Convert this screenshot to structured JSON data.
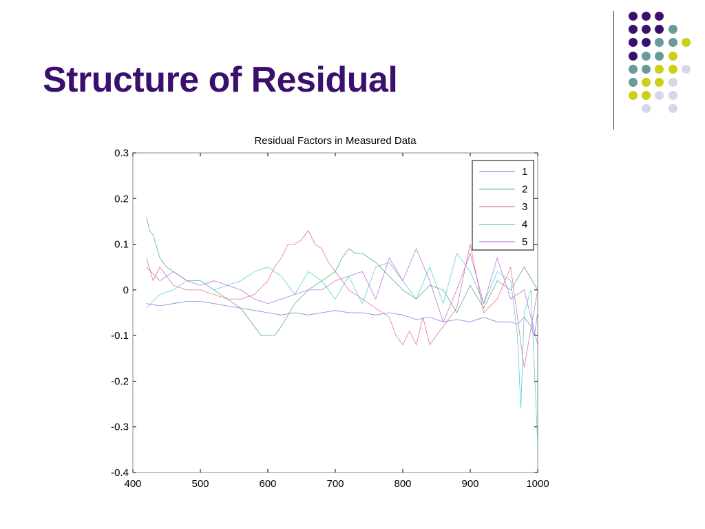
{
  "slide": {
    "title": "Structure of Residual"
  },
  "decoration": {
    "icon": "dot-grid-icon",
    "colors": {
      "purple": "#3b0f6e",
      "teal": "#6b9a9a",
      "yellow": "#cdcd1a",
      "lavender": "#d6d6ea"
    },
    "grid": [
      [
        "purple",
        "purple",
        "purple",
        null,
        null
      ],
      [
        "purple",
        "purple",
        "purple",
        "teal",
        null
      ],
      [
        "purple",
        "purple",
        "teal",
        "teal",
        "yellow"
      ],
      [
        "purple",
        "teal",
        "teal",
        "yellow",
        null
      ],
      [
        "teal",
        "teal",
        "yellow",
        "yellow",
        "lavender"
      ],
      [
        "teal",
        "yellow",
        "yellow",
        "lavender",
        null
      ],
      [
        "yellow",
        "yellow",
        "lavender",
        "lavender",
        null
      ],
      [
        null,
        "lavender",
        null,
        "lavender",
        null
      ]
    ]
  },
  "chart_data": {
    "type": "line",
    "title": "Residual Factors in Measured Data",
    "xlabel": "",
    "ylabel": "",
    "xlim": [
      400,
      1000
    ],
    "ylim": [
      -0.4,
      0.3
    ],
    "xticks": [
      400,
      500,
      600,
      700,
      800,
      900,
      1000
    ],
    "yticks": [
      0.3,
      0.2,
      0.1,
      0,
      -0.1,
      -0.2,
      -0.3,
      -0.4
    ],
    "xtick_labels": [
      "400",
      "500",
      "600",
      "700",
      "800",
      "900",
      "1000"
    ],
    "ytick_labels": [
      "0.3",
      "0.2",
      "0.1",
      "0",
      "-0.1",
      "-0.2",
      "-0.3",
      "-0.4"
    ],
    "grid": false,
    "legend_position": "top-right",
    "series": [
      {
        "name": "1",
        "color": "#6f6fe0",
        "x": [
          420,
          440,
          460,
          480,
          500,
          520,
          540,
          560,
          580,
          600,
          620,
          640,
          660,
          680,
          700,
          720,
          740,
          760,
          780,
          800,
          820,
          840,
          860,
          880,
          900,
          920,
          940,
          960,
          970,
          980,
          990,
          995,
          1000
        ],
        "values": [
          -0.03,
          -0.035,
          -0.03,
          -0.025,
          -0.025,
          -0.03,
          -0.035,
          -0.04,
          -0.045,
          -0.05,
          -0.055,
          -0.05,
          -0.055,
          -0.05,
          -0.045,
          -0.05,
          -0.05,
          -0.055,
          -0.05,
          -0.055,
          -0.065,
          -0.06,
          -0.07,
          -0.065,
          -0.07,
          -0.06,
          -0.07,
          -0.07,
          -0.075,
          -0.06,
          -0.08,
          -0.1,
          -0.05
        ]
      },
      {
        "name": "2",
        "color": "#3ca05a",
        "x": [
          420,
          425,
          430,
          440,
          450,
          460,
          480,
          500,
          520,
          540,
          560,
          580,
          590,
          600,
          610,
          620,
          640,
          660,
          680,
          700,
          710,
          720,
          730,
          740,
          760,
          780,
          800,
          820,
          840,
          860,
          880,
          900,
          920,
          940,
          960,
          980,
          1000
        ],
        "values": [
          0.16,
          0.13,
          0.12,
          0.07,
          0.05,
          0.04,
          0.02,
          0.02,
          0.0,
          -0.02,
          -0.04,
          -0.08,
          -0.1,
          -0.1,
          -0.1,
          -0.08,
          -0.03,
          0.0,
          0.02,
          0.04,
          0.07,
          0.09,
          0.08,
          0.08,
          0.06,
          0.03,
          0.0,
          -0.02,
          0.01,
          0.0,
          -0.05,
          0.01,
          -0.04,
          0.02,
          0.0,
          0.05,
          0.0
        ]
      },
      {
        "name": "3",
        "color": "#e05a8a",
        "x": [
          420,
          430,
          440,
          460,
          480,
          500,
          520,
          540,
          560,
          580,
          600,
          610,
          620,
          630,
          640,
          650,
          660,
          670,
          680,
          690,
          700,
          720,
          740,
          760,
          780,
          790,
          800,
          810,
          820,
          830,
          840,
          860,
          880,
          900,
          920,
          940,
          960,
          980,
          1000
        ],
        "values": [
          0.07,
          0.02,
          0.05,
          0.01,
          0.0,
          0.0,
          -0.01,
          -0.02,
          -0.02,
          -0.01,
          0.02,
          0.05,
          0.07,
          0.1,
          0.1,
          0.11,
          0.13,
          0.1,
          0.09,
          0.06,
          0.04,
          0.0,
          -0.02,
          -0.04,
          -0.06,
          -0.1,
          -0.12,
          -0.09,
          -0.12,
          -0.06,
          -0.12,
          -0.08,
          -0.04,
          0.1,
          -0.05,
          -0.02,
          0.05,
          -0.17,
          0.0
        ]
      },
      {
        "name": "4",
        "color": "#3cc8c8",
        "x": [
          420,
          440,
          460,
          480,
          500,
          520,
          540,
          560,
          580,
          600,
          620,
          640,
          660,
          680,
          700,
          720,
          740,
          760,
          780,
          800,
          820,
          840,
          860,
          880,
          900,
          920,
          940,
          960,
          970,
          975,
          980,
          990,
          1000
        ],
        "values": [
          -0.04,
          -0.01,
          0.0,
          0.02,
          0.02,
          0.0,
          0.01,
          0.02,
          0.04,
          0.05,
          0.03,
          -0.01,
          0.04,
          0.02,
          -0.02,
          0.03,
          -0.03,
          0.05,
          0.06,
          0.02,
          -0.02,
          0.05,
          -0.03,
          0.08,
          0.04,
          -0.03,
          0.04,
          0.02,
          -0.1,
          -0.26,
          -0.05,
          0.0,
          -0.34
        ]
      },
      {
        "name": "5",
        "color": "#b45ae0",
        "x": [
          420,
          440,
          460,
          480,
          500,
          520,
          540,
          560,
          580,
          600,
          620,
          640,
          660,
          680,
          700,
          720,
          740,
          760,
          780,
          800,
          820,
          840,
          860,
          880,
          900,
          920,
          940,
          960,
          980,
          1000
        ],
        "values": [
          0.05,
          0.02,
          0.04,
          0.02,
          0.01,
          0.02,
          0.01,
          0.0,
          -0.02,
          -0.03,
          -0.02,
          -0.01,
          0.0,
          0.0,
          0.02,
          0.03,
          0.04,
          -0.02,
          0.07,
          0.02,
          0.09,
          0.02,
          -0.07,
          0.0,
          0.08,
          -0.03,
          0.07,
          -0.02,
          0.0,
          -0.12
        ]
      }
    ]
  }
}
